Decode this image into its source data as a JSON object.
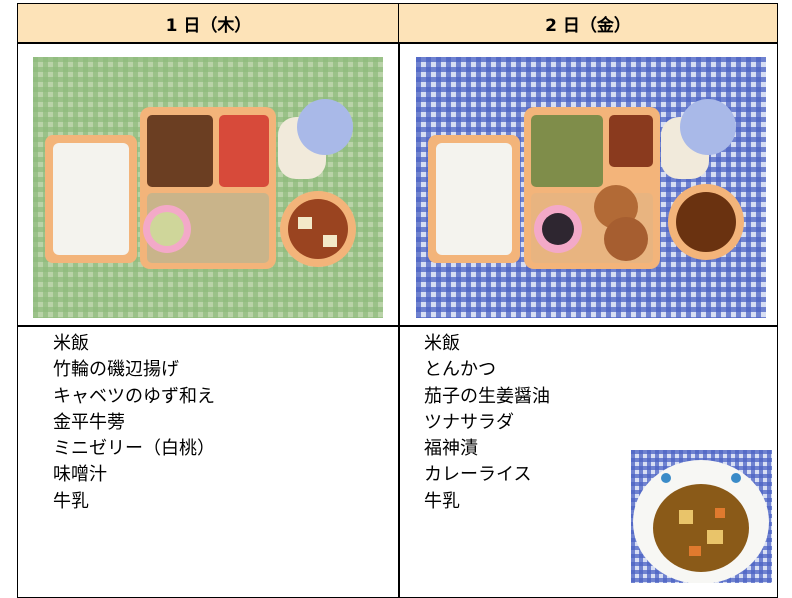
{
  "columns": [
    {
      "header": "1 日（木）",
      "menu": [
        "米飯",
        "竹輪の磯辺揚げ",
        "キャベツのゆず和え",
        "金平牛蒡",
        "ミニゼリー（白桃）",
        "味噌汁",
        "牛乳"
      ]
    },
    {
      "header": "2 日（金）",
      "menu": [
        "米飯",
        "とんかつ",
        "茄子の生姜醤油",
        "ツナサラダ",
        "福神漬",
        "カレーライス",
        "牛乳"
      ]
    }
  ]
}
